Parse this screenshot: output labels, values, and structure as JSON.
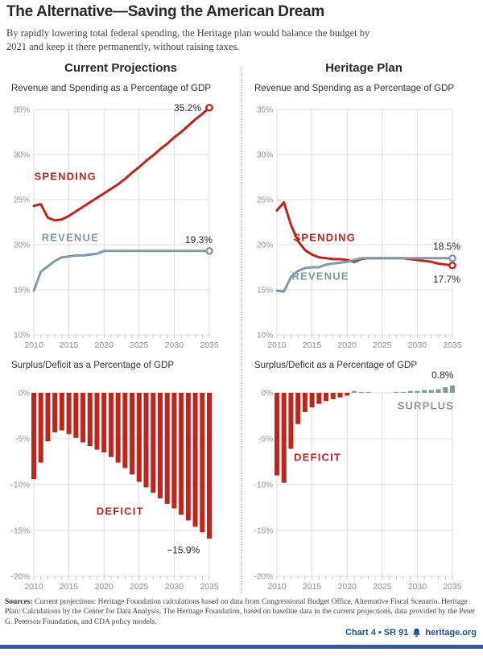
{
  "page": {
    "title": "The Alternative—Saving the American Dream",
    "subtitle": "By rapidly lowering total federal spending, the Heritage plan would balance the budget by 2021 and keep it there permanently, without raising taxes.",
    "columns": [
      {
        "header": "Current Projections"
      },
      {
        "header": "Heritage Plan"
      }
    ],
    "footer": {
      "sources_label": "Sources:",
      "sources_text": " Current projections: Heritage Foundation calculations based on data from Congressional Budget Office, Alternative Fiscal Scenario.  Heritage Plan: Calculations by the Center for Data Analysis, The Heritage Foundation, based on baseline data in the current projections, data provided by the Peter G. Peterson Foundation, and CDA policy models.",
      "chart_ref": "Chart 4 • SR 91",
      "site": "heritage.org"
    }
  },
  "colors": {
    "red": "#c2231b",
    "blue": "#7d9aab",
    "dark": "#2b2b2b",
    "grid": "#dcdcdc",
    "tick": "#c6c6c6",
    "axis_text": "#8f8f8f",
    "footer_blue": "#1d4f9e"
  },
  "chart_data": [
    {
      "id": "current-revenue-spending",
      "type": "line",
      "title": "Revenue and Spending as a Percentage of GDP",
      "x": [
        2010,
        2011,
        2012,
        2013,
        2014,
        2015,
        2016,
        2017,
        2018,
        2019,
        2020,
        2021,
        2022,
        2023,
        2024,
        2025,
        2026,
        2027,
        2028,
        2029,
        2030,
        2031,
        2032,
        2033,
        2034,
        2035
      ],
      "xticks": [
        2010,
        2015,
        2020,
        2025,
        2030,
        2035
      ],
      "ylim": [
        10,
        35
      ],
      "yticks": [
        35,
        30,
        25,
        20,
        15,
        10
      ],
      "series": [
        {
          "name": "SPENDING",
          "color": "red",
          "values": [
            24.3,
            24.5,
            23.0,
            22.7,
            22.8,
            23.2,
            23.7,
            24.2,
            24.7,
            25.2,
            25.7,
            26.2,
            26.7,
            27.3,
            28.0,
            28.6,
            29.3,
            29.9,
            30.6,
            31.2,
            31.9,
            32.5,
            33.2,
            33.9,
            34.5,
            35.2
          ],
          "end_label": "35.2%",
          "end_anchor": "end",
          "end_dx": -10,
          "end_dy": 4
        },
        {
          "name": "REVENUE",
          "color": "blue",
          "values": [
            14.9,
            17.0,
            17.6,
            18.2,
            18.6,
            18.7,
            18.8,
            18.8,
            18.9,
            19.0,
            19.3,
            19.3,
            19.3,
            19.3,
            19.3,
            19.3,
            19.3,
            19.3,
            19.3,
            19.3,
            19.3,
            19.3,
            19.3,
            19.3,
            19.3,
            19.3
          ],
          "end_label": "19.3%",
          "end_anchor": "end",
          "end_dx": 4,
          "end_dy": -10
        }
      ],
      "annotations": [
        {
          "text": "SPENDING",
          "x": 2014.5,
          "y": 27.2,
          "color": "red",
          "bold": true
        },
        {
          "text": "REVENUE",
          "x": 2015.2,
          "y": 20.4,
          "color": "blue",
          "bold": true
        }
      ]
    },
    {
      "id": "heritage-revenue-spending",
      "type": "line",
      "title": "Revenue and Spending as a Percentage of GDP",
      "x": [
        2010,
        2011,
        2012,
        2013,
        2014,
        2015,
        2016,
        2017,
        2018,
        2019,
        2020,
        2021,
        2022,
        2023,
        2024,
        2025,
        2026,
        2027,
        2028,
        2029,
        2030,
        2031,
        2032,
        2033,
        2034,
        2035
      ],
      "xticks": [
        2010,
        2015,
        2020,
        2025,
        2030,
        2035
      ],
      "ylim": [
        10,
        35
      ],
      "yticks": [
        35,
        30,
        25,
        20,
        15,
        10
      ],
      "series": [
        {
          "name": "SPENDING",
          "color": "red",
          "values": [
            23.8,
            24.7,
            22.2,
            20.4,
            19.4,
            18.9,
            18.6,
            18.5,
            18.4,
            18.4,
            18.3,
            18.1,
            18.4,
            18.5,
            18.5,
            18.5,
            18.5,
            18.5,
            18.5,
            18.4,
            18.3,
            18.2,
            18.1,
            17.9,
            17.8,
            17.7
          ],
          "end_label": "17.7%",
          "end_anchor": "end",
          "end_dx": 10,
          "end_dy": 21
        },
        {
          "name": "REVENUE",
          "color": "blue",
          "values": [
            14.9,
            14.8,
            16.4,
            17.1,
            17.4,
            17.5,
            17.5,
            17.8,
            17.9,
            18.0,
            18.1,
            18.3,
            18.5,
            18.5,
            18.5,
            18.5,
            18.5,
            18.5,
            18.5,
            18.5,
            18.5,
            18.5,
            18.5,
            18.5,
            18.5,
            18.5
          ],
          "end_label": "18.5%",
          "end_anchor": "end",
          "end_dx": 10,
          "end_dy": -11
        }
      ],
      "annotations": [
        {
          "text": "SPENDING",
          "x": 2016.8,
          "y": 20.4,
          "color": "red",
          "bold": true
        },
        {
          "text": "REVENUE",
          "x": 2016.2,
          "y": 16.1,
          "color": "blue",
          "bold": true
        }
      ]
    },
    {
      "id": "current-surplus-deficit",
      "type": "bar",
      "title": "Surplus/Deficit as a Percentage of GDP",
      "x": [
        2010,
        2011,
        2012,
        2013,
        2014,
        2015,
        2016,
        2017,
        2018,
        2019,
        2020,
        2021,
        2022,
        2023,
        2024,
        2025,
        2026,
        2027,
        2028,
        2029,
        2030,
        2031,
        2032,
        2033,
        2034,
        2035
      ],
      "xticks": [
        2010,
        2015,
        2020,
        2025,
        2030,
        2035
      ],
      "ylim": [
        -20,
        0
      ],
      "yticks": [
        0,
        -5,
        -10,
        -15,
        -20
      ],
      "values": [
        -9.4,
        -7.6,
        -5.3,
        -4.3,
        -4.1,
        -4.5,
        -4.9,
        -5.4,
        -5.8,
        -6.2,
        -6.5,
        -7.0,
        -7.6,
        -8.2,
        -8.9,
        -9.7,
        -10.3,
        -10.9,
        -11.5,
        -12.1,
        -12.6,
        -13.3,
        -13.9,
        -14.6,
        -15.2,
        -15.9
      ],
      "annotations": [
        {
          "text": "DEFICIT",
          "x": 2022.3,
          "y": -13.3,
          "color": "red",
          "bold": true
        },
        {
          "text": "−15.9%",
          "x": 2031.3,
          "y": -17.5,
          "color": "dark"
        }
      ]
    },
    {
      "id": "heritage-surplus-deficit",
      "type": "bar",
      "title": "Surplus/Deficit as a Percentage of GDP",
      "x": [
        2010,
        2011,
        2012,
        2013,
        2014,
        2015,
        2016,
        2017,
        2018,
        2019,
        2020,
        2021,
        2022,
        2023,
        2024,
        2025,
        2026,
        2027,
        2028,
        2029,
        2030,
        2031,
        2032,
        2033,
        2034,
        2035
      ],
      "xticks": [
        2010,
        2015,
        2020,
        2025,
        2030,
        2035
      ],
      "ylim": [
        -20,
        0
      ],
      "yticks": [
        0,
        -5,
        -10,
        -15,
        -20
      ],
      "values": [
        -9.0,
        -9.8,
        -6.1,
        -3.4,
        -2.1,
        -1.6,
        -1.2,
        -0.9,
        -0.7,
        -0.5,
        -0.3,
        0.2,
        0.1,
        0.1,
        0.0,
        0.0,
        0.0,
        0.1,
        0.1,
        0.2,
        0.2,
        0.3,
        0.3,
        0.4,
        0.6,
        0.8
      ],
      "annotations": [
        {
          "text": "DEFICIT",
          "x": 2015.8,
          "y": -7.4,
          "color": "red",
          "bold": true
        },
        {
          "text": "SURPLUS",
          "x": 2031.2,
          "y": -1.8,
          "color": "blue",
          "bold": true
        },
        {
          "text": "0.8%",
          "x": 2033.6,
          "y": 1.6,
          "color": "dark"
        }
      ]
    }
  ]
}
